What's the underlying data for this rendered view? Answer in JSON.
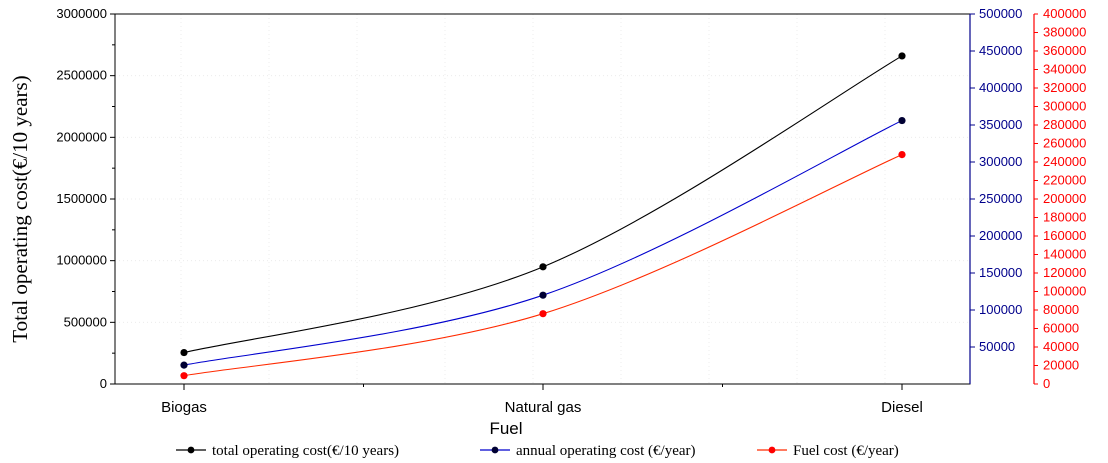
{
  "chart_data": {
    "type": "line",
    "xlabel": "Fuel",
    "ylabel": "Total operating cost(€/10 years)",
    "categories": [
      "Biogas",
      "Natural gas",
      "Diesel"
    ],
    "axes": {
      "left": {
        "range": [
          0,
          3000000
        ],
        "ticks": [
          "0",
          "500000",
          "1000000",
          "1500000",
          "2000000",
          "2500000",
          "3000000"
        ],
        "color": "#000000"
      },
      "right_inner": {
        "range": [
          0,
          500000
        ],
        "ticks": [
          "50000",
          "100000",
          "150000",
          "200000",
          "250000",
          "300000",
          "350000",
          "400000",
          "450000",
          "500000"
        ],
        "color": "#00008b"
      },
      "right_outer": {
        "range": [
          0,
          400000
        ],
        "ticks": [
          "0",
          "20000",
          "40000",
          "60000",
          "80000",
          "100000",
          "120000",
          "140000",
          "160000",
          "180000",
          "200000",
          "220000",
          "240000",
          "260000",
          "280000",
          "300000",
          "320000",
          "340000",
          "360000",
          "380000",
          "400000"
        ],
        "color": "#ff0000"
      }
    },
    "series": [
      {
        "name": "total operating cost(€/10 years)",
        "axis": "left",
        "color": "#000000",
        "values": [
          255000,
          950000,
          2660000
        ]
      },
      {
        "name": "annual operating cost (€/year)",
        "axis": "right_inner",
        "color": "#0000cd",
        "values": [
          25500,
          120000,
          356000
        ]
      },
      {
        "name": "Fuel cost (€/year)",
        "axis": "right_outer",
        "color": "#ff2a00",
        "values": [
          9000,
          76000,
          248000
        ]
      }
    ],
    "grid": true,
    "legend_position": "bottom"
  }
}
